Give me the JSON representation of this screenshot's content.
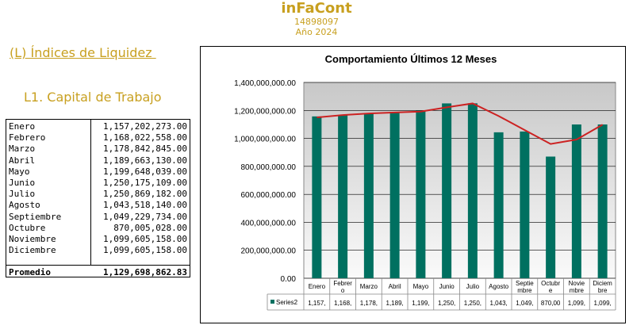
{
  "header": {
    "title": "inFaCont",
    "id": "14898097",
    "year": "Año 2024"
  },
  "section": {
    "label": "(L) Índices de Liquidez "
  },
  "subsection": {
    "label": "L1. Capital de Trabajo"
  },
  "table": {
    "rows": [
      {
        "month": "Enero",
        "value": "1,157,202,273.00"
      },
      {
        "month": "Febrero",
        "value": "1,168,022,558.00"
      },
      {
        "month": "Marzo",
        "value": "1,178,842,845.00"
      },
      {
        "month": "Abril",
        "value": "1,189,663,130.00"
      },
      {
        "month": "Mayo",
        "value": "1,199,648,039.00"
      },
      {
        "month": "Junio",
        "value": "1,250,175,109.00"
      },
      {
        "month": "Julio",
        "value": "1,250,869,182.00"
      },
      {
        "month": "Agosto",
        "value": "1,043,518,140.00"
      },
      {
        "month": "Septiembre",
        "value": "1,049,229,734.00"
      },
      {
        "month": "Octubre",
        "value": "870,005,028.00"
      },
      {
        "month": "Noviembre",
        "value": "1,099,605,158.00"
      },
      {
        "month": "Diciembre",
        "value": "1,099,605,158.00"
      }
    ],
    "average_label": "Promedio",
    "average_value": "1,129,698,862.83"
  },
  "chart_data": {
    "type": "bar",
    "title": "Comportamiento Últimos 12 Meses",
    "categories": [
      "Enero",
      "Febrero",
      "Marzo",
      "Abril",
      "Mayo",
      "Junio",
      "Julio",
      "Agosto",
      "Septiembre",
      "Octubre",
      "Noviembre",
      "Diciembre"
    ],
    "category_labels": [
      [
        "Enero"
      ],
      [
        "Febrer",
        "o"
      ],
      [
        "Marzo"
      ],
      [
        "Abril"
      ],
      [
        "Mayo"
      ],
      [
        "Junio"
      ],
      [
        "Julio"
      ],
      [
        "Agosto"
      ],
      [
        "Septie",
        "mbre"
      ],
      [
        "Octubr",
        "e"
      ],
      [
        "Novie",
        "mbre"
      ],
      [
        "Diciem",
        "bre"
      ]
    ],
    "series": [
      {
        "name": "Series2",
        "values": [
          1157202273,
          1168022558,
          1178842845,
          1189663130,
          1199648039,
          1250175109,
          1250869182,
          1043518140,
          1049229734,
          870005028,
          1099605158,
          1099605158
        ],
        "table_labels": [
          "1,157,",
          "1,168,",
          "1,178,",
          "1,189,",
          "1,199,",
          "1,250,",
          "1,250,",
          "1,043,",
          "1,049,",
          "870,00",
          "1,099,",
          "1,099,"
        ],
        "color": "#007060"
      }
    ],
    "trend_line": {
      "values": [
        1150000000,
        1167000000,
        1178000000,
        1185000000,
        1192000000,
        1222000000,
        1250000000,
        1160000000,
        1060000000,
        960000000,
        992000000,
        1098000000
      ],
      "color": "#cc2222"
    },
    "ylim": [
      0,
      1400000000
    ],
    "yticks": [
      "0.00",
      "200,000,000.00",
      "400,000,000.00",
      "600,000,000.00",
      "800,000,000.00",
      "1,000,000,000.00",
      "1,200,000,000.00",
      "1,400,000,000.00"
    ],
    "xlabel": "",
    "ylabel": "",
    "grid": true,
    "legend": "bottom-data-table"
  }
}
